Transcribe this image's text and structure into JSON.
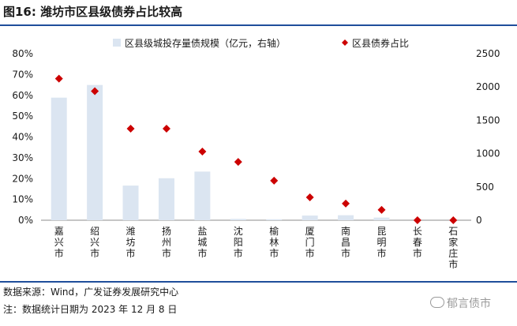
{
  "figure": {
    "title": "图16:  潍坊市区县级债券占比较高",
    "source": "数据来源：Wind，广发证券发展研究中心",
    "note": "注：数据统计日期为 2023 年 12 月 8 日",
    "watermark": "郁言债市"
  },
  "chart_data": {
    "type": "bar",
    "categories": [
      "嘉兴市",
      "绍兴市",
      "潍坊市",
      "扬州市",
      "盐城市",
      "沈阳市",
      "榆林市",
      "厦门市",
      "南昌市",
      "昆明市",
      "长春市",
      "石家庄市"
    ],
    "series": [
      {
        "name": "区县级城投存量债规模（亿元，右轴）",
        "type": "bar",
        "axis": "right",
        "color": "#dbe5f1",
        "values": [
          1840,
          2030,
          520,
          630,
          730,
          20,
          15,
          70,
          75,
          40,
          0,
          0
        ]
      },
      {
        "name": "区县债券占比",
        "type": "scatter",
        "axis": "left",
        "color": "#cc0000",
        "values": [
          0.68,
          0.62,
          0.44,
          0.44,
          0.33,
          0.28,
          0.19,
          0.11,
          0.08,
          0.05,
          0.0,
          0.0
        ]
      }
    ],
    "y_left": {
      "ylim": [
        0,
        0.8
      ],
      "ticks": [
        "0%",
        "10%",
        "20%",
        "30%",
        "40%",
        "50%",
        "60%",
        "70%",
        "80%"
      ]
    },
    "y_right": {
      "ylim": [
        0,
        2500
      ],
      "ticks": [
        "0",
        "500",
        "1000",
        "1500",
        "2000",
        "2500"
      ]
    },
    "legend_position": "top",
    "grid": false
  }
}
